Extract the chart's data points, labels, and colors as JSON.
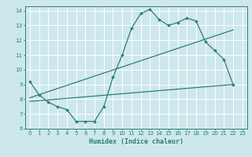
{
  "title": "",
  "xlabel": "Humidex (Indice chaleur)",
  "ylabel": "",
  "bg_color": "#cde8ec",
  "line_color": "#2e7d7a",
  "grid_color": "#ffffff",
  "xlim": [
    -0.5,
    23.5
  ],
  "ylim": [
    6,
    14.3
  ],
  "xticks": [
    0,
    1,
    2,
    3,
    4,
    5,
    6,
    7,
    8,
    9,
    10,
    11,
    12,
    13,
    14,
    15,
    16,
    17,
    18,
    19,
    20,
    21,
    22,
    23
  ],
  "yticks": [
    6,
    7,
    8,
    9,
    10,
    11,
    12,
    13,
    14
  ],
  "line1_x": [
    0,
    1,
    2,
    3,
    4,
    5,
    6,
    7,
    8,
    9,
    10,
    11,
    12,
    13,
    14,
    15,
    16,
    17,
    18,
    19,
    20,
    21,
    22
  ],
  "line1_y": [
    9.2,
    8.3,
    7.8,
    7.5,
    7.3,
    6.5,
    6.5,
    6.5,
    7.5,
    9.5,
    11.0,
    12.8,
    13.8,
    14.1,
    13.4,
    13.0,
    13.2,
    13.5,
    13.3,
    11.9,
    11.3,
    10.7,
    9.0
  ],
  "line2_x": [
    0,
    22
  ],
  "line2_y": [
    8.1,
    12.7
  ],
  "line3_x": [
    0,
    22
  ],
  "line3_y": [
    7.85,
    9.0
  ]
}
